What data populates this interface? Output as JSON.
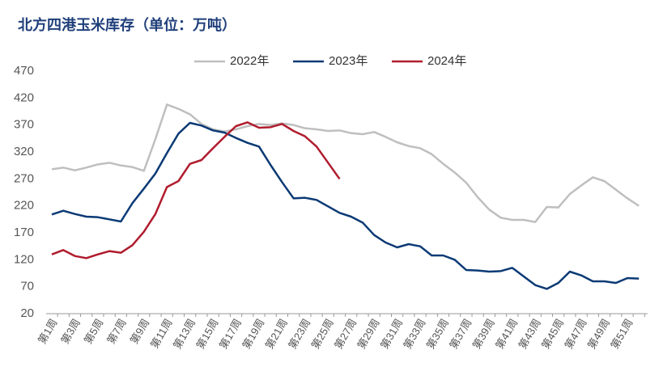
{
  "chart_data": {
    "type": "line",
    "title": "北方四港玉米库存（单位：万吨）",
    "categories": [
      "第1周",
      null,
      "第3周",
      null,
      "第5周",
      null,
      "第7周",
      null,
      "第9周",
      null,
      "第11周",
      null,
      "第13周",
      null,
      "第15周",
      null,
      "第17周",
      null,
      "第19周",
      null,
      "第21周",
      null,
      "第23周",
      null,
      "第25周",
      null,
      "第27周",
      null,
      "第29周",
      null,
      "第31周",
      null,
      "第33周",
      null,
      "第35周",
      null,
      "第37周",
      null,
      "第39周",
      null,
      "第41周",
      null,
      "第43周",
      null,
      "第45周",
      null,
      "第47周",
      null,
      "第49周",
      null,
      "第51周",
      null
    ],
    "series": [
      {
        "name": "2022年",
        "color": "#bfbfbf",
        "values": [
          288,
          291,
          286,
          291,
          297,
          300,
          295,
          292,
          285,
          344,
          408,
          400,
          390,
          372,
          362,
          358,
          362,
          368,
          372,
          370,
          373,
          370,
          364,
          362,
          359,
          360,
          355,
          353,
          357,
          348,
          338,
          331,
          327,
          316,
          298,
          282,
          263,
          236,
          213,
          198,
          194,
          194,
          190,
          218,
          217,
          242,
          258,
          273,
          266,
          250,
          234,
          220
        ]
      },
      {
        "name": "2023年",
        "color": "#0b3a75",
        "values": [
          204,
          211,
          205,
          200,
          199,
          195,
          191,
          225,
          252,
          280,
          318,
          354,
          374,
          369,
          360,
          356,
          346,
          337,
          330,
          296,
          264,
          234,
          235,
          231,
          219,
          207,
          200,
          189,
          166,
          152,
          143,
          149,
          145,
          128,
          128,
          120,
          101,
          100,
          98,
          99,
          105,
          89,
          73,
          66,
          77,
          98,
          91,
          80,
          80,
          77,
          86,
          85
        ]
      },
      {
        "name": "2024年",
        "color": "#b01c2e",
        "values": [
          130,
          138,
          127,
          123,
          130,
          136,
          133,
          147,
          172,
          205,
          255,
          266,
          298,
          305,
          327,
          348,
          368,
          375,
          365,
          366,
          372,
          359,
          349,
          330,
          300,
          270,
          null,
          null,
          null,
          null,
          null,
          null,
          null,
          null,
          null,
          null,
          null,
          null,
          null,
          null,
          null,
          null,
          null,
          null,
          null,
          null,
          null,
          null,
          null,
          null,
          null,
          null
        ]
      }
    ],
    "ylim": [
      20,
      470
    ],
    "yticks": [
      20,
      70,
      120,
      170,
      220,
      270,
      320,
      370,
      420,
      470
    ],
    "legend": "top"
  }
}
